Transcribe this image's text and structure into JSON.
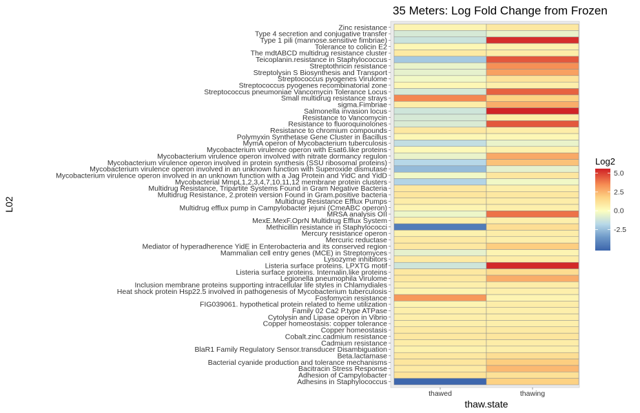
{
  "chart_data": {
    "type": "heatmap",
    "title": "35 Meters: Log Fold Change from Frozen",
    "xlabel": "thaw.state",
    "ylabel": "L02",
    "columns": [
      "thawed",
      "thawing"
    ],
    "rows": [
      "Zinc resistance",
      "Type 4 secretion and conjugative transfer",
      "Type 1 pili (mannose.sensitive fimbriae)",
      "Tolerance to colicin E2",
      "The mdtABCD multidrug resistance cluster",
      "Teicoplanin.resistance in Staphylococcus",
      "Streptothricin resistance",
      "Streptolysin S Biosynthesis and Transport",
      "Streptococcus pyogenes Virulome",
      "Streptococcus pyogenes recombinatorial zone",
      "Streptococcus pneumoniae Vancomycin Tolerance Locus",
      "Small multidrug resistance strays",
      "sigma.Fimbriae",
      "Salmonella invasion locus",
      "Resistance to Vancomycin",
      "Resistance to fluoroquinolones",
      "Resistance to chromium compounds",
      "Polymyxin Synthetase Gene Cluster in Bacillus",
      "MymA operon of Mycobacterium tuberculosis",
      "Mycobacterium virulence operon with Esat6.like proteins",
      "Mycobacterium virulence operon involved with nitrate dormancy regulon",
      "Mycobacterium virulence operon involved in protein synthesis (SSU ribosomal proteins)",
      "Mycobacterium virulence operon involved in an unknown function with Superoxide dismutase",
      "Mycobacterium virulence operon involved in an unknown function with a Jag Protein and YidC and YidD",
      "Mycobacterial MmpL1,2,3,4,7,10,11,12 membrane protein clusters",
      "Multidrug Resistance, Tripartite Systems Found in Gram Negative Bacteria",
      "Multidrug Resistance, 2.protein version Found in Gram.positive bacteria",
      "Multidrug Resistance Efflux Pumps",
      "Multidrug efflux pump in Campylobacter jejuni (CmeABC operon)",
      "MRSA analysis OII",
      "MexE.MexF.OprN Multidrug Efflux System",
      "Methicillin resistance in Staphylococci",
      "Mercury resistance operon",
      "Mercuric reductase",
      "Mediator of hyperadherence YidE in Enterobacteria and its conserved region",
      "Mammalian cell entry genes (MCE) in Streptomyces",
      "Lysozyme inhibitors",
      "Listeria surface proteins. LPXTG motif",
      "Listeria surface proteins. Internalin.like proteins",
      "Legionella pneumophila Virulome",
      "Inclusion membrane proteins supporting intracellular life styles in Chlamydiales",
      "Heat shock protein Hsp22.5 involved in pathogenesis of Mycobacterium tuberculosis",
      "Fosfomycin resistance",
      "FIG039061. hypothetical protein related to heme utilization",
      "Family 02 Ca2 P.type ATPase",
      "Cytolysin and Lipase operon in Vibrio",
      "Copper homeostasis: copper tolerance",
      "Copper homeostasis",
      "Cobalt.zinc.cadmium resistance",
      "Cadmium resistance",
      "BlaR1 Family Regulatory Sensor.transducer Disambiguation",
      "Beta.lactamase",
      "Bacterial cyanide production and tolerance mechanisms",
      "Bacitracin Stress Response",
      "Adhesion of Campylobacter",
      "Adhesins in Staphylococcus"
    ],
    "values": [
      [
        0.4,
        0.9
      ],
      [
        -1.0,
        -0.5
      ],
      [
        -1.3,
        5.3
      ],
      [
        0.3,
        0.5
      ],
      [
        0.8,
        0.7
      ],
      [
        -2.2,
        4.5
      ],
      [
        -0.5,
        3.4
      ],
      [
        -0.6,
        3.0
      ],
      [
        -0.3,
        1.1
      ],
      [
        0.3,
        0.6
      ],
      [
        -1.0,
        4.3
      ],
      [
        3.6,
        1.8
      ],
      [
        0.7,
        2.7
      ],
      [
        -1.2,
        5.5
      ],
      [
        -1.0,
        0.7
      ],
      [
        -0.9,
        4.5
      ],
      [
        0.9,
        0.7
      ],
      [
        0.3,
        0.3
      ],
      [
        -1.5,
        -0.5
      ],
      [
        0.2,
        0.5
      ],
      [
        -0.5,
        2.8
      ],
      [
        -1.8,
        2.2
      ],
      [
        -2.6,
        -0.6
      ],
      [
        -0.3,
        1.0
      ],
      [
        -1.9,
        -0.3
      ],
      [
        0.9,
        0.6
      ],
      [
        1.0,
        0.9
      ],
      [
        0.7,
        0.7
      ],
      [
        0.4,
        0.6
      ],
      [
        -0.4,
        4.0
      ],
      [
        0.6,
        0.6
      ],
      [
        -4.5,
        1.3
      ],
      [
        0.5,
        0.7
      ],
      [
        0.8,
        0.6
      ],
      [
        0.9,
        1.9
      ],
      [
        -0.6,
        0.4
      ],
      [
        0.8,
        0.7
      ],
      [
        -1.2,
        5.4
      ],
      [
        0.9,
        1.4
      ],
      [
        0.9,
        2.7
      ],
      [
        0.6,
        0.7
      ],
      [
        0.4,
        0.6
      ],
      [
        3.2,
        0.4
      ],
      [
        0.4,
        0.7
      ],
      [
        0.6,
        0.6
      ],
      [
        0.6,
        0.6
      ],
      [
        0.6,
        0.6
      ],
      [
        0.8,
        0.8
      ],
      [
        0.9,
        1.0
      ],
      [
        0.7,
        0.7
      ],
      [
        0.5,
        0.6
      ],
      [
        0.9,
        1.3
      ],
      [
        1.0,
        1.9
      ],
      [
        0.8,
        2.4
      ],
      [
        1.1,
        1.2
      ],
      [
        -5.2,
        1.8
      ]
    ],
    "legend": {
      "title": "Log2",
      "ticks": [
        5.0,
        2.5,
        0.0,
        -2.5
      ],
      "tick_labels": [
        "5.0",
        "2.5",
        "0.0",
        "-2.5"
      ],
      "min": -5.3,
      "max": 5.6,
      "placement": "right"
    },
    "colors": {
      "stops": [
        [
          -5.3,
          "#3b64ab"
        ],
        [
          -3.5,
          "#6f9ac9"
        ],
        [
          -1.8,
          "#b7d8e8"
        ],
        [
          0.0,
          "#fdfebf"
        ],
        [
          1.8,
          "#fdd283"
        ],
        [
          3.5,
          "#f68c53"
        ],
        [
          5.6,
          "#cf1f25"
        ]
      ],
      "panel_background": "#ebebeb",
      "tile_border": "#8c8c8c"
    }
  }
}
